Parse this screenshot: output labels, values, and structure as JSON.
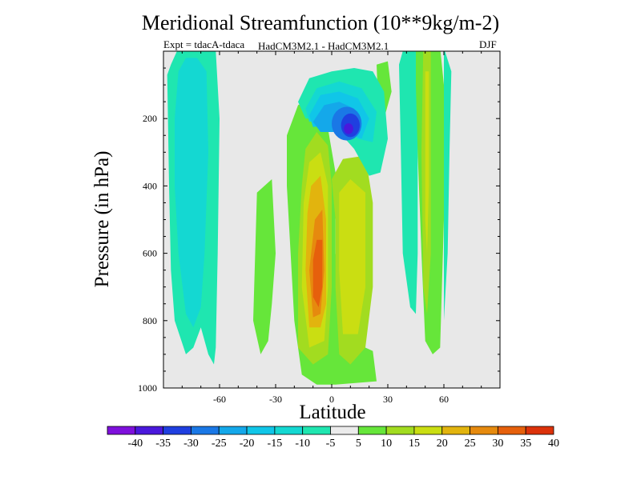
{
  "chart_data": {
    "type": "filled-contour",
    "title": "Meridional Streamfunction (10**9kg/m-2)",
    "subtitle_left": "Expt = tdacA-tdaca",
    "subtitle_center": "HadCM3M2.1 - HadCM3M2.1",
    "subtitle_right": "DJF",
    "xlabel": "Latitude",
    "ylabel": "Pressure (in hPa)",
    "xlim": [
      -90,
      90
    ],
    "ylim": [
      1000,
      0
    ],
    "x_ticks": [
      -60,
      -30,
      0,
      30,
      60
    ],
    "y_ticks": [
      200,
      400,
      600,
      800,
      1000
    ],
    "colorbar": {
      "levels": [
        -40,
        -35,
        -30,
        -25,
        -20,
        -15,
        -10,
        -5,
        5,
        10,
        15,
        20,
        25,
        30,
        35,
        40
      ],
      "tick_labels": [
        "-40",
        "-35",
        "-30",
        "-25",
        "-20",
        "-15",
        "-10",
        "-5",
        "5",
        "10",
        "15",
        "20",
        "25",
        "30",
        "35",
        "40"
      ],
      "colors": [
        "#7e10dc",
        "#4a18dc",
        "#1f3fe0",
        "#1a78e6",
        "#14a8ea",
        "#10c6e8",
        "#14d8d2",
        "#1fe6b0",
        "#ebebeb",
        "#66e63a",
        "#a2dc20",
        "#cade12",
        "#e2b40e",
        "#e68a0e",
        "#e6600c",
        "#dc320a"
      ]
    },
    "features": [
      {
        "name": "Southern tropical negative cell",
        "lat_range": [
          -14,
          2
        ],
        "pressure_range": [
          90,
          280
        ],
        "min_value": -30
      },
      {
        "name": "Northern tropical negative cell",
        "lat_range": [
          -6,
          25
        ],
        "pressure_range": [
          80,
          370
        ],
        "min_value": -35
      },
      {
        "name": "Main positive (Hadley) cell",
        "lat_range": [
          -14,
          4
        ],
        "pressure_range": [
          240,
          990
        ],
        "max_value": 35
      },
      {
        "name": "Secondary positive cell",
        "lat_range": [
          2,
          22
        ],
        "pressure_range": [
          300,
          900
        ],
        "max_value": 20
      },
      {
        "name": "Southern extratropical negative band",
        "lat_range": [
          -86,
          -60
        ],
        "pressure_range": [
          0,
          930
        ],
        "min_value": -10
      },
      {
        "name": "Northern midlatitude positive band",
        "lat_range": [
          46,
          58
        ],
        "pressure_range": [
          0,
          900
        ],
        "max_value": 20
      },
      {
        "name": "Northern midlatitude negative band",
        "lat_range": [
          38,
          48
        ],
        "pressure_range": [
          0,
          770
        ],
        "min_value": -10
      }
    ]
  }
}
